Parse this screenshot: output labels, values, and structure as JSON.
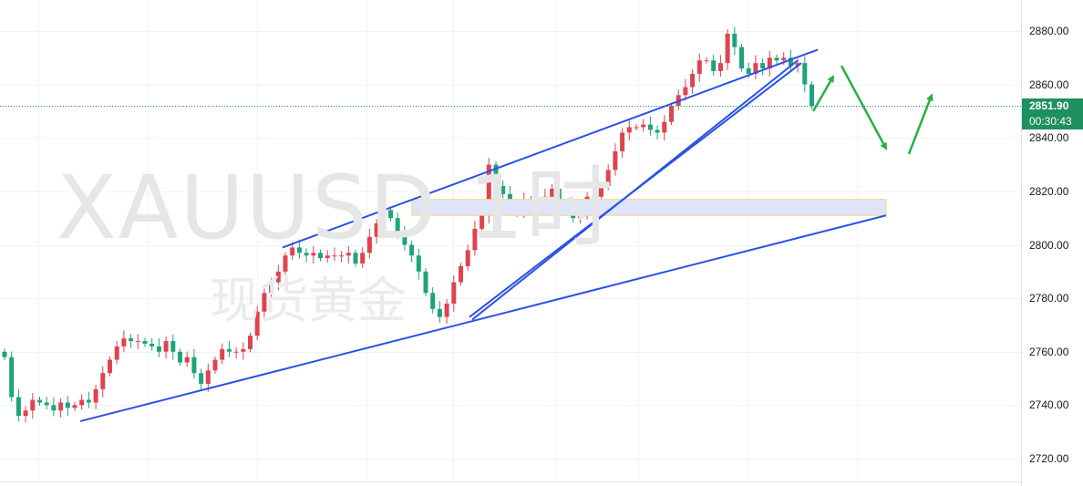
{
  "watermark": {
    "symbol": "XAUUSD",
    "interval": "1时",
    "name": "现货黄金"
  },
  "current_price": {
    "price": "2851.90",
    "countdown": "00:30:43",
    "color": "#1e8f5e"
  },
  "colors": {
    "up": "#e0434f",
    "down": "#1ea37a",
    "trendline": "#2a51e8",
    "arrow": "#27b043",
    "zone_fill": "#dfe4fb",
    "zone_border": "#f2dc74"
  },
  "chart_data": {
    "type": "candlestick",
    "title": "",
    "xlabel": "",
    "ylabel": "",
    "ylim": [
      2715,
      2885
    ],
    "yticks": [
      "2720.00",
      "2740.00",
      "2760.00",
      "2780.00",
      "2800.00",
      "2820.00",
      "2840.00",
      "2860.00",
      "2880.00"
    ],
    "close_path": [
      2758,
      2743,
      2736,
      2738,
      2742,
      2741,
      2740,
      2738,
      2741,
      2739,
      2740,
      2742,
      2741,
      2746,
      2752,
      2757,
      2762,
      2765,
      2764,
      2764,
      2763,
      2762,
      2760,
      2764,
      2760,
      2756,
      2758,
      2752,
      2748,
      2753,
      2757,
      2761,
      2760,
      2760,
      2761,
      2766,
      2775,
      2782,
      2786,
      2790,
      2796,
      2799,
      2797,
      2796,
      2797,
      2795,
      2796,
      2796,
      2796,
      2797,
      2793,
      2797,
      2803,
      2808,
      2813,
      2810,
      2804,
      2800,
      2796,
      2790,
      2782,
      2776,
      2773,
      2778,
      2786,
      2792,
      2798,
      2806,
      2811,
      2830,
      2822,
      2819,
      2815,
      2813,
      2817,
      2814,
      2813,
      2818,
      2821,
      2816,
      2812,
      2810,
      2812,
      2818,
      2818,
      2822,
      2828,
      2835,
      2842,
      2844,
      2844,
      2845,
      2843,
      2842,
      2846,
      2852,
      2856,
      2859,
      2864,
      2869,
      2869,
      2865,
      2868,
      2879,
      2874,
      2866,
      2864,
      2868,
      2866,
      2870,
      2869,
      2870,
      2867,
      2868,
      2860,
      2852
    ],
    "trendlines": [
      {
        "from": [
          "bar 0",
          2734
        ],
        "to": [
          "projection",
          2811
        ]
      },
      {
        "from": [
          "bar 60",
          2799
        ],
        "to": [
          "bar 112",
          2873
        ]
      },
      {
        "from": [
          "bar 63",
          2773
        ],
        "to": [
          "bar 111",
          2868
        ]
      },
      {
        "from": [
          "bar 65",
          2772
        ],
        "to": [
          "bar 115",
          2869
        ]
      }
    ],
    "zone": {
      "from_bar": 57,
      "price_low": 2811,
      "price_high": 2817
    },
    "projection_arrows": [
      [
        2850,
        2863
      ],
      [
        2867,
        2836
      ],
      [
        2834,
        2856
      ]
    ]
  }
}
